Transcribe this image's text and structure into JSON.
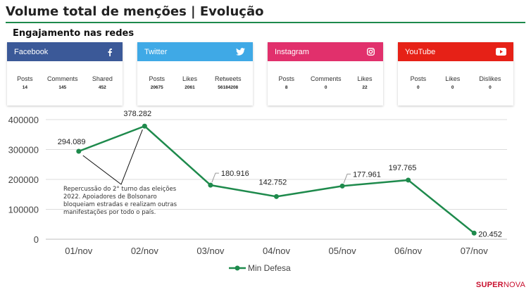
{
  "header": {
    "title": "Volume total de menções | Evolução"
  },
  "section": {
    "title": "Engajamento nas redes"
  },
  "cards": [
    {
      "name": "Facebook",
      "color": "#3b5998",
      "icon": "facebook-icon",
      "stats": [
        {
          "label": "Posts",
          "value": "14"
        },
        {
          "label": "Comments",
          "value": "145"
        },
        {
          "label": "Shared",
          "value": "452"
        }
      ]
    },
    {
      "name": "Twitter",
      "color": "#3fa9e6",
      "icon": "twitter-icon",
      "stats": [
        {
          "label": "Posts",
          "value": "20675"
        },
        {
          "label": "Likes",
          "value": "2061"
        },
        {
          "label": "Retweets",
          "value": "56184208"
        }
      ]
    },
    {
      "name": "Instagram",
      "color": "#e1306c",
      "icon": "instagram-icon",
      "stats": [
        {
          "label": "Posts",
          "value": "8"
        },
        {
          "label": "Comments",
          "value": "0"
        },
        {
          "label": "Likes",
          "value": "22"
        }
      ]
    },
    {
      "name": "YouTube",
      "color": "#e62117",
      "icon": "youtube-icon",
      "stats": [
        {
          "label": "Posts",
          "value": "0"
        },
        {
          "label": "Likes",
          "value": "0"
        },
        {
          "label": "Dislikes",
          "value": "0"
        }
      ]
    }
  ],
  "chart_data": {
    "type": "line",
    "categories": [
      "01/nov",
      "02/nov",
      "03/nov",
      "04/nov",
      "05/nov",
      "06/nov",
      "07/nov"
    ],
    "series": [
      {
        "name": "Min Defesa",
        "color": "#1e8a4c",
        "values": [
          294089,
          378282,
          180916,
          142752,
          177961,
          197765,
          20452
        ],
        "labels": [
          "294.089",
          "378.282",
          "180.916",
          "142.752",
          "177.961",
          "197.765",
          "20.452"
        ]
      }
    ],
    "yticks": [
      0,
      100000,
      200000,
      300000,
      400000
    ],
    "ylim": [
      0,
      400000
    ],
    "grid": true,
    "legend": "bottom",
    "annotation": {
      "lines": [
        "Repercussão do 2° turno das eleições",
        "2022. Apoiadores de Bolsonaro",
        "bloqueiam estradas e realizam outras",
        "manifestações por todo o país."
      ]
    }
  },
  "brand": {
    "part1": "SUPER",
    "part2": "NOVA"
  }
}
